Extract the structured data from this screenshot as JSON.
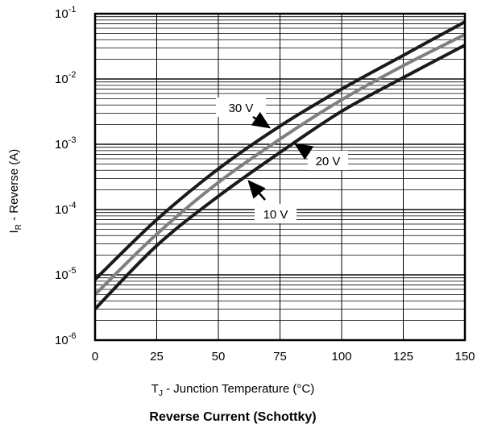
{
  "chart_data": {
    "type": "line",
    "title": "Reverse Current (Schottky)",
    "xlabel": {
      "main": "T",
      "sub": "J",
      "rest": " - Junction Temperature (°C)"
    },
    "ylabel": {
      "main": "I",
      "sub": "R",
      "rest": " - Reverse (A)"
    },
    "x_ticks": [
      "0",
      "25",
      "50",
      "75",
      "100",
      "125",
      "150"
    ],
    "y_ticks": [
      {
        "base": "10",
        "exp": "-6"
      },
      {
        "base": "10",
        "exp": "-5"
      },
      {
        "base": "10",
        "exp": "-4"
      },
      {
        "base": "10",
        "exp": "-3"
      },
      {
        "base": "10",
        "exp": "-2"
      },
      {
        "base": "10",
        "exp": "-1"
      }
    ],
    "xlim": [
      0,
      150
    ],
    "ylim": [
      1e-06,
      0.1
    ],
    "yscale": "log",
    "grid": true,
    "series": [
      {
        "name": "30 V",
        "color": "#1a1a1a",
        "x": [
          0,
          25,
          50,
          75,
          100,
          125,
          150
        ],
        "y": [
          8.5e-06,
          7e-05,
          0.00042,
          0.0019,
          0.007,
          0.023,
          0.075
        ]
      },
      {
        "name": "20 V",
        "color": "#808080",
        "x": [
          0,
          25,
          50,
          75,
          100,
          125,
          150
        ],
        "y": [
          5e-06,
          4.2e-05,
          0.00026,
          0.0012,
          0.0048,
          0.016,
          0.048
        ]
      },
      {
        "name": "10 V",
        "color": "#1a1a1a",
        "x": [
          0,
          25,
          50,
          75,
          100,
          125,
          150
        ],
        "y": [
          3e-06,
          2.8e-05,
          0.00016,
          0.00075,
          0.0032,
          0.0105,
          0.033
        ]
      }
    ],
    "annotations": [
      {
        "label": "30 V",
        "series": "30 V"
      },
      {
        "label": "20 V",
        "series": "20 V"
      },
      {
        "label": "10 V",
        "series": "10 V"
      }
    ]
  }
}
